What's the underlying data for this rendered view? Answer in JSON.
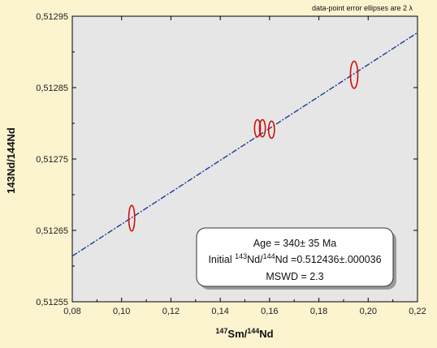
{
  "chart_data": {
    "type": "scatter",
    "note": "data-point error ellipses are 2 λ",
    "xlabel": {
      "pre": "147",
      "a": "Sm/",
      "sup": "144",
      "b": "Nd"
    },
    "ylabel": "143Nd/144Nd",
    "xlim": [
      0.08,
      0.22
    ],
    "ylim": [
      0.51255,
      0.51295
    ],
    "x_ticks": [
      "0,08",
      "0,10",
      "0,12",
      "0,14",
      "0,16",
      "0,18",
      "0,20",
      "0,22"
    ],
    "y_ticks": [
      "0,51255",
      "0,51265",
      "0,51275",
      "0,51285",
      "0,51295"
    ],
    "grid": false,
    "points": [
      {
        "x": 0.1041,
        "y": 0.512667,
        "sx": 0.0012,
        "sy": 1.8e-05
      },
      {
        "x": 0.1551,
        "y": 0.512793,
        "sx": 0.0012,
        "sy": 1.2e-05
      },
      {
        "x": 0.1571,
        "y": 0.512793,
        "sx": 0.0012,
        "sy": 1.2e-05
      },
      {
        "x": 0.1608,
        "y": 0.512791,
        "sx": 0.0012,
        "sy": 1.2e-05
      },
      {
        "x": 0.1943,
        "y": 0.512868,
        "sx": 0.0015,
        "sy": 1.9e-05
      }
    ],
    "isochron": {
      "x": [
        0.08,
        0.22
      ],
      "y": [
        0.512614,
        0.512927
      ]
    },
    "result_box": {
      "age": "Age = 340± 35 Ma",
      "initial_a": "Initial ",
      "initial_sup1": "143",
      "initial_b": "Nd/",
      "initial_sup2": "144",
      "initial_c": "Nd =0.512436±.000036",
      "mswd": "MSWD = 2.3"
    },
    "colors": {
      "plot_bg": "#e6e6e6",
      "page_bg": "#fcf3cf",
      "ellipse": "#d01010",
      "line": "#1a3a9c"
    }
  }
}
